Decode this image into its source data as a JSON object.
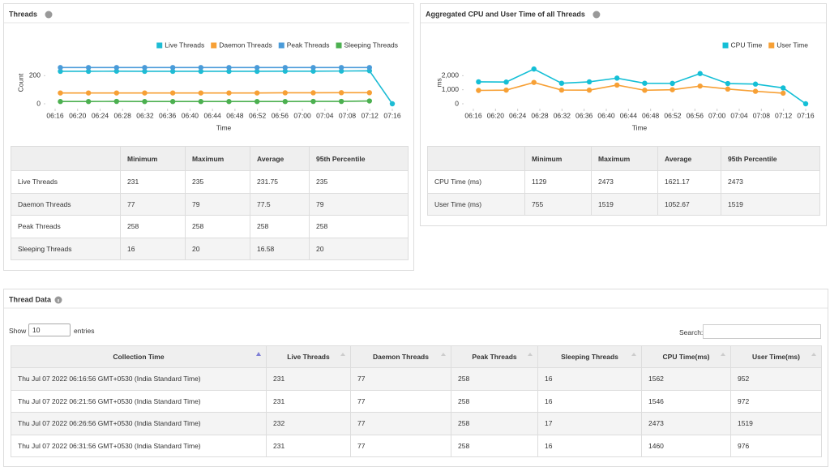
{
  "chart_data": [
    {
      "type": "line",
      "title": "Threads",
      "x_label": "Time",
      "y_label": "Count",
      "legend": "top-right",
      "x": [
        "06:16:56",
        "06:21:56",
        "06:26:56",
        "06:31:56",
        "06:36:56",
        "06:41:56",
        "06:46:56",
        "06:51:56",
        "06:56:56",
        "07:01:56",
        "07:06:56",
        "07:11:56",
        "07:16"
      ],
      "xlim": [
        "06:16",
        "07:16"
      ],
      "xticks": [
        "06:16",
        "06:20",
        "06:24",
        "06:28",
        "06:32",
        "06:36",
        "06:40",
        "06:44",
        "06:48",
        "06:52",
        "06:56",
        "07:00",
        "07:04",
        "07:08",
        "07:12",
        "07:16"
      ],
      "ylim": [
        0,
        300
      ],
      "yticks": [
        0,
        200
      ],
      "series": [
        {
          "name": "Live Threads",
          "color": "#1ebcd4",
          "values": [
            231,
            231,
            232,
            231,
            231,
            231,
            231,
            231,
            232,
            232,
            233,
            235,
            0
          ]
        },
        {
          "name": "Daemon Threads",
          "color": "#f7a035",
          "values": [
            77,
            77,
            77,
            77,
            77,
            77,
            77,
            77,
            78,
            78,
            79,
            79,
            null
          ]
        },
        {
          "name": "Peak Threads",
          "color": "#4a9bd9",
          "values": [
            258,
            258,
            258,
            258,
            258,
            258,
            258,
            258,
            258,
            258,
            258,
            258,
            null
          ]
        },
        {
          "name": "Sleeping Threads",
          "color": "#4cb050",
          "values": [
            16,
            16,
            17,
            16,
            16,
            16,
            16,
            16,
            16,
            17,
            17,
            20,
            null
          ]
        }
      ]
    },
    {
      "type": "line",
      "title": "Aggregated CPU and User Time of all Threads",
      "x_label": "Time",
      "y_label": "ms",
      "legend": "top-right",
      "x": [
        "06:16:56",
        "06:21:56",
        "06:26:56",
        "06:31:56",
        "06:36:56",
        "06:41:56",
        "06:46:56",
        "06:51:56",
        "06:56:56",
        "07:01:56",
        "07:06:56",
        "07:11:56",
        "07:16"
      ],
      "xlim": [
        "06:16",
        "07:16"
      ],
      "xticks": [
        "06:16",
        "06:20",
        "06:24",
        "06:28",
        "06:32",
        "06:36",
        "06:40",
        "06:44",
        "06:48",
        "06:52",
        "06:56",
        "07:00",
        "07:04",
        "07:08",
        "07:12",
        "07:16"
      ],
      "ylim": [
        0,
        3000
      ],
      "yticks": [
        0,
        {
          "value": 1000,
          "label": "1,000"
        },
        {
          "value": 2000,
          "label": "2,000"
        }
      ],
      "series": [
        {
          "name": "CPU Time",
          "color": "#14bfd6",
          "values": [
            1562,
            1546,
            2473,
            1460,
            1560,
            1824,
            1460,
            1450,
            2150,
            1440,
            1400,
            1129,
            0
          ]
        },
        {
          "name": "User Time",
          "color": "#f7a035",
          "values": [
            952,
            972,
            1519,
            976,
            970,
            1330,
            960,
            1000,
            1260,
            1050,
            888,
            755,
            null
          ]
        }
      ]
    }
  ],
  "stats_tables": [
    {
      "header": [
        "Minimum",
        "Maximum",
        "Average",
        "95th Percentile"
      ],
      "rows": [
        [
          "Live Threads",
          231,
          235,
          231.75,
          235
        ],
        [
          "Daemon Threads",
          77,
          79,
          77.5,
          79
        ],
        [
          "Peak Threads",
          258,
          258,
          258,
          258
        ],
        [
          "Sleeping Threads",
          16,
          20,
          16.58,
          20
        ]
      ]
    },
    {
      "header": [
        "Minimum",
        "Maximum",
        "Average",
        "95th Percentile"
      ],
      "rows": [
        [
          "CPU Time (ms)",
          1129,
          2473,
          1621.17,
          2473
        ],
        [
          "User Time (ms)",
          755,
          1519,
          1052.67,
          1519
        ]
      ]
    }
  ],
  "thread_data": {
    "title": "Thread Data",
    "show_label": "Show",
    "page_size": "10",
    "entries_label": "entries",
    "search_label": "Search:",
    "header": [
      "Collection Time",
      "Live Threads",
      "Daemon Threads",
      "Peak Threads",
      "Sleeping Threads",
      "CPU Time(ms)",
      "User Time(ms)"
    ],
    "rows": [
      [
        "Thu Jul 07 2022 06:16:56 GMT+0530 (India Standard Time)",
        231,
        77,
        258,
        16,
        1562,
        952
      ],
      [
        "Thu Jul 07 2022 06:21:56 GMT+0530 (India Standard Time)",
        231,
        77,
        258,
        16,
        1546,
        972
      ],
      [
        "Thu Jul 07 2022 06:26:56 GMT+0530 (India Standard Time)",
        232,
        77,
        258,
        17,
        2473,
        1519
      ],
      [
        "Thu Jul 07 2022 06:31:56 GMT+0530 (India Standard Time)",
        231,
        77,
        258,
        16,
        1460,
        976
      ]
    ]
  }
}
